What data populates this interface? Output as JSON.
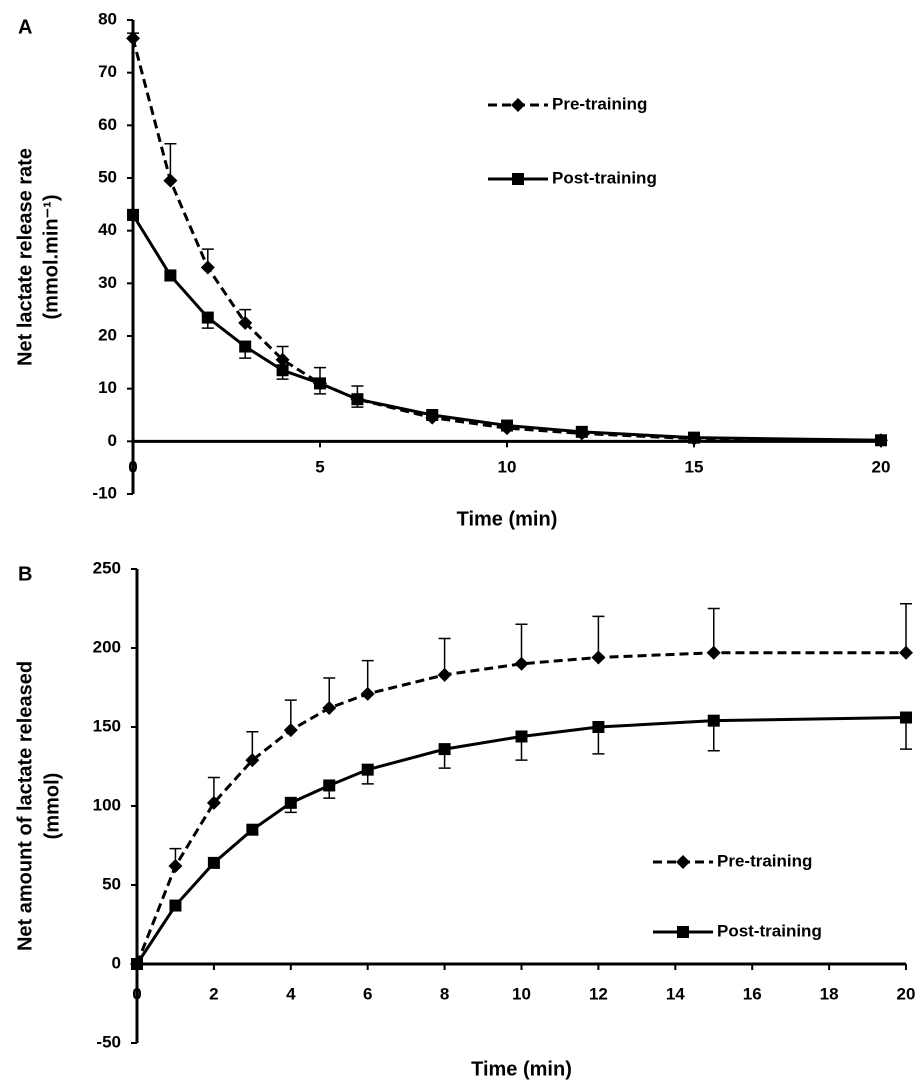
{
  "chart_data": [
    {
      "type": "line",
      "panel_label": "A",
      "y_label": [
        "Net lactate release rate",
        "(mmol.min⁻¹)"
      ],
      "x_label": "Time (min)",
      "x": [
        0,
        1,
        2,
        3,
        4,
        5,
        6,
        8,
        10,
        12,
        15,
        20
      ],
      "xlim": [
        0,
        20
      ],
      "ylim": [
        -10,
        80
      ],
      "xticks": [
        0,
        5,
        10,
        15,
        20
      ],
      "yticks": [
        -10,
        0,
        10,
        20,
        30,
        40,
        50,
        60,
        70,
        80
      ],
      "legend": "upper-center",
      "series": [
        {
          "name": "Pre-training",
          "color": "#000000",
          "marker": "diamond",
          "dashed": true,
          "error_side": "up",
          "values": [
            76.5,
            49.5,
            33,
            22.5,
            15.5,
            11,
            8,
            4.5,
            2.5,
            1.5,
            0.5,
            0.2
          ],
          "errors": [
            1,
            7,
            3.5,
            2.5,
            2.5,
            3,
            2.5,
            1,
            1,
            0.5,
            0.5,
            0.3
          ]
        },
        {
          "name": "Post-training",
          "color": "#000000",
          "marker": "square",
          "dashed": false,
          "error_side": "down",
          "values": [
            43,
            31.5,
            23.5,
            18,
            13.5,
            11,
            8,
            5,
            3,
            1.8,
            0.7,
            0.2
          ],
          "errors": [
            1,
            1,
            2,
            2.2,
            1.7,
            2,
            1.5,
            0.8,
            0.6,
            0.5,
            0.3,
            0.2
          ]
        }
      ]
    },
    {
      "type": "line",
      "panel_label": "B",
      "y_label": [
        "Net amount of lactate released",
        "(mmol)"
      ],
      "x_label": "Time (min)",
      "x": [
        0,
        1,
        2,
        3,
        4,
        5,
        6,
        8,
        10,
        12,
        15,
        20
      ],
      "xlim": [
        0,
        20
      ],
      "ylim": [
        -50,
        250
      ],
      "xticks": [
        0,
        2,
        4,
        6,
        8,
        10,
        12,
        14,
        16,
        18,
        20
      ],
      "yticks": [
        -50,
        0,
        50,
        100,
        150,
        200,
        250
      ],
      "legend": "lower-right",
      "series": [
        {
          "name": "Pre-training",
          "color": "#000000",
          "marker": "diamond",
          "dashed": true,
          "error_side": "up",
          "values": [
            0,
            62,
            102,
            129,
            148,
            162,
            171,
            183,
            190,
            194,
            197,
            197
          ],
          "errors": [
            0,
            11,
            16,
            18,
            19,
            19,
            21,
            23,
            25,
            26,
            28,
            31
          ]
        },
        {
          "name": "Post-training",
          "color": "#000000",
          "marker": "square",
          "dashed": false,
          "error_side": "down",
          "values": [
            0,
            37,
            64,
            85,
            102,
            113,
            123,
            136,
            144,
            150,
            154,
            156
          ],
          "errors": [
            0,
            3,
            3,
            3,
            6,
            8,
            9,
            12,
            15,
            17,
            19,
            20
          ]
        }
      ]
    }
  ]
}
